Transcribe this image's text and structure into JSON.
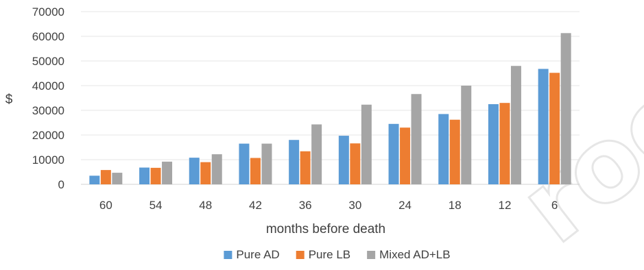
{
  "watermark_text": "roof",
  "chart_data": {
    "type": "bar",
    "title": "",
    "xlabel": "months before death",
    "ylabel": "$",
    "categories": [
      "60",
      "54",
      "48",
      "42",
      "36",
      "30",
      "24",
      "18",
      "12",
      "6"
    ],
    "ylim": [
      0,
      70000
    ],
    "yticks": [
      "0",
      "10000",
      "20000",
      "30000",
      "40000",
      "50000",
      "60000",
      "70000"
    ],
    "grid": true,
    "legend_position": "bottom",
    "series": [
      {
        "name": "Pure AD",
        "color": "#5b9bd5",
        "values": [
          3500,
          6800,
          10800,
          16500,
          18000,
          19700,
          24500,
          28500,
          32500,
          46800
        ]
      },
      {
        "name": "Pure LB",
        "color": "#ed7d31",
        "values": [
          5800,
          6700,
          9000,
          10700,
          13400,
          16600,
          23000,
          26200,
          33000,
          45200
        ]
      },
      {
        "name": "Mixed AD+LB",
        "color": "#a5a5a5",
        "values": [
          4700,
          9200,
          12200,
          16500,
          24300,
          32300,
          36600,
          40000,
          48000,
          61300
        ]
      }
    ]
  }
}
